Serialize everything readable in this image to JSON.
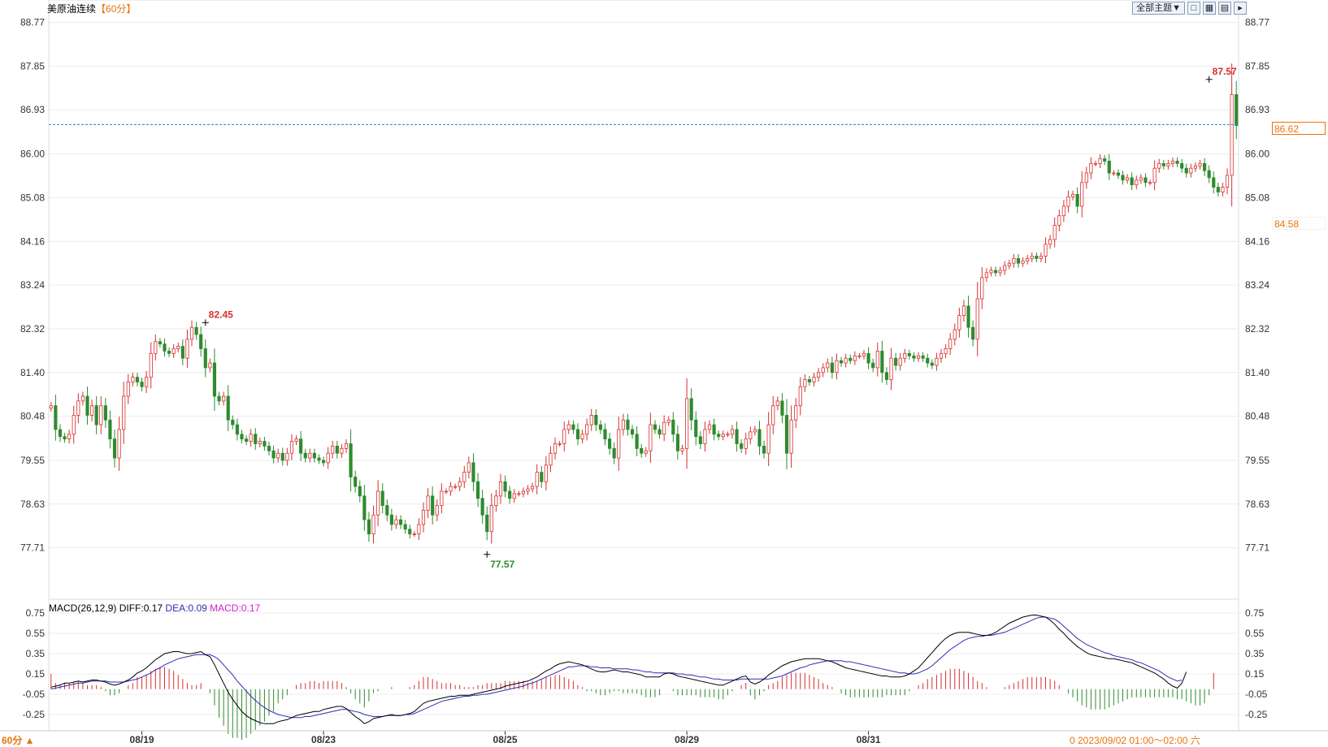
{
  "header": {
    "symbol": "美原油连续",
    "period": "【60分】"
  },
  "toolbar": {
    "theme_label": "全部主题▼",
    "icons": [
      "window-icon",
      "grid-icon",
      "grid-plus-icon",
      "panel-toggle-icon"
    ]
  },
  "price_tags": {
    "current": "86.62",
    "secondary": "84.58"
  },
  "macd_legend": {
    "name": "MACD(26,12,9)",
    "diff": "DIFF:0.17",
    "dea": "DEA:0.09",
    "macd": "MACD:0.17"
  },
  "footer": {
    "period_button": "60分 ▲",
    "status": "0 2023/09/02 01:00～02:00 六"
  },
  "colors": {
    "up": "#d63030",
    "down": "#2e8b2e",
    "diff_line": "#000000",
    "dea_line": "#2d2db5",
    "macd_label": "#d020d0",
    "current_price_line": "#2f7fc8",
    "accent": "#e8730c"
  },
  "chart_data": [
    {
      "type": "candlestick",
      "title": "美原油连续",
      "yticks": [
        "88.77",
        "87.85",
        "86.93",
        "86.00",
        "85.08",
        "84.16",
        "83.24",
        "82.32",
        "81.40",
        "80.48",
        "79.55",
        "78.63",
        "77.71"
      ],
      "ylim": [
        76.9,
        88.9
      ],
      "xticks": [
        {
          "index": 20,
          "label": "08/19"
        },
        {
          "index": 60,
          "label": "08/23"
        },
        {
          "index": 100,
          "label": "08/25"
        },
        {
          "index": 140,
          "label": "08/29"
        },
        {
          "index": 180,
          "label": "08/31"
        }
      ],
      "annotations": [
        {
          "index": 34,
          "value": 82.45,
          "label": "82.45",
          "kind": "high"
        },
        {
          "index": 96,
          "value": 77.57,
          "label": "77.57",
          "kind": "low"
        },
        {
          "index": 255,
          "value": 87.57,
          "label": "87.57",
          "kind": "high"
        }
      ],
      "reference_line": {
        "value": 86.62,
        "label": "86.62"
      },
      "close": [
        80.7,
        80.2,
        80.05,
        80.0,
        80.1,
        80.5,
        80.8,
        80.9,
        80.5,
        80.7,
        80.3,
        80.7,
        80.4,
        80.0,
        79.6,
        80.2,
        80.9,
        81.2,
        81.3,
        81.2,
        81.1,
        81.3,
        81.8,
        82.05,
        82.0,
        81.85,
        81.8,
        81.9,
        81.95,
        81.7,
        82.1,
        82.35,
        82.2,
        81.9,
        81.5,
        81.6,
        80.9,
        80.8,
        80.9,
        80.4,
        80.3,
        80.1,
        80.0,
        79.95,
        80.1,
        79.9,
        79.95,
        79.85,
        79.75,
        79.6,
        79.7,
        79.55,
        79.7,
        79.95,
        80.0,
        79.7,
        79.6,
        79.7,
        79.6,
        79.55,
        79.5,
        79.7,
        79.85,
        79.7,
        79.8,
        79.9,
        79.2,
        79.0,
        78.8,
        78.3,
        78.0,
        78.4,
        78.9,
        78.6,
        78.4,
        78.2,
        78.3,
        78.2,
        78.1,
        78.0,
        78.0,
        78.2,
        78.5,
        78.8,
        78.4,
        78.6,
        78.9,
        78.9,
        79.0,
        79.0,
        79.1,
        79.3,
        79.5,
        79.1,
        78.75,
        78.4,
        78.05,
        78.6,
        78.8,
        79.1,
        78.9,
        78.75,
        78.85,
        78.85,
        78.9,
        78.95,
        79.0,
        79.3,
        79.1,
        79.45,
        79.7,
        79.9,
        79.9,
        80.2,
        80.3,
        80.2,
        80.0,
        80.1,
        80.3,
        80.5,
        80.3,
        80.2,
        80.0,
        79.8,
        79.6,
        80.2,
        80.4,
        80.2,
        80.1,
        79.8,
        79.7,
        79.75,
        80.3,
        80.2,
        80.1,
        80.35,
        80.4,
        80.1,
        79.75,
        79.8,
        80.85,
        80.4,
        80.05,
        79.9,
        80.2,
        80.3,
        80.1,
        80.05,
        80.1,
        80.1,
        80.2,
        79.9,
        79.8,
        80.0,
        80.15,
        80.2,
        79.85,
        79.7,
        80.3,
        80.7,
        80.8,
        80.5,
        79.7,
        80.4,
        80.7,
        81.1,
        81.25,
        81.2,
        81.3,
        81.4,
        81.5,
        81.6,
        81.4,
        81.65,
        81.6,
        81.7,
        81.65,
        81.75,
        81.75,
        81.8,
        81.6,
        81.5,
        81.85,
        81.4,
        81.25,
        81.7,
        81.55,
        81.7,
        81.8,
        81.75,
        81.7,
        81.75,
        81.7,
        81.6,
        81.55,
        81.7,
        81.8,
        81.9,
        82.1,
        82.3,
        82.6,
        82.8,
        82.35,
        82.1,
        82.95,
        83.4,
        83.5,
        83.55,
        83.5,
        83.55,
        83.65,
        83.7,
        83.8,
        83.7,
        83.75,
        83.8,
        83.85,
        83.8,
        83.85,
        84.1,
        84.2,
        84.5,
        84.7,
        84.9,
        85.1,
        85.15,
        84.9,
        85.4,
        85.6,
        85.8,
        85.8,
        85.9,
        85.85,
        85.6,
        85.6,
        85.55,
        85.45,
        85.5,
        85.35,
        85.45,
        85.5,
        85.4,
        85.4,
        85.7,
        85.8,
        85.75,
        85.8,
        85.85,
        85.8,
        85.7,
        85.6,
        85.7,
        85.75,
        85.8,
        85.65,
        85.5,
        85.3,
        85.2,
        85.3,
        85.55,
        87.25,
        86.6
      ],
      "macd": {
        "yticks": [
          "0.75",
          "0.55",
          "0.35",
          "0.15",
          "-0.05",
          "-0.25"
        ],
        "ylim": [
          -0.41,
          0.83
        ],
        "diff": [
          0.02,
          0.03,
          0.04,
          0.06,
          0.06,
          0.07,
          0.08,
          0.07,
          0.08,
          0.09,
          0.09,
          0.08,
          0.07,
          0.05,
          0.04,
          0.05,
          0.07,
          0.09,
          0.12,
          0.16,
          0.18,
          0.21,
          0.25,
          0.29,
          0.32,
          0.35,
          0.36,
          0.37,
          0.37,
          0.36,
          0.35,
          0.35,
          0.36,
          0.37,
          0.34,
          0.32,
          0.24,
          0.15,
          0.06,
          -0.03,
          -0.1,
          -0.16,
          -0.22,
          -0.26,
          -0.29,
          -0.31,
          -0.33,
          -0.34,
          -0.34,
          -0.34,
          -0.32,
          -0.31,
          -0.3,
          -0.28,
          -0.26,
          -0.25,
          -0.24,
          -0.23,
          -0.22,
          -0.22,
          -0.2,
          -0.19,
          -0.18,
          -0.17,
          -0.17,
          -0.19,
          -0.23,
          -0.27,
          -0.3,
          -0.34,
          -0.32,
          -0.29,
          -0.28,
          -0.27,
          -0.26,
          -0.25,
          -0.26,
          -0.26,
          -0.25,
          -0.24,
          -0.22,
          -0.18,
          -0.14,
          -0.12,
          -0.11,
          -0.1,
          -0.09,
          -0.08,
          -0.07,
          -0.07,
          -0.06,
          -0.06,
          -0.06,
          -0.05,
          -0.04,
          -0.03,
          -0.02,
          -0.01,
          0.0,
          0.01,
          0.03,
          0.04,
          0.05,
          0.06,
          0.07,
          0.08,
          0.1,
          0.12,
          0.15,
          0.18,
          0.2,
          0.23,
          0.25,
          0.26,
          0.27,
          0.26,
          0.25,
          0.24,
          0.22,
          0.2,
          0.18,
          0.17,
          0.17,
          0.18,
          0.19,
          0.18,
          0.17,
          0.17,
          0.16,
          0.15,
          0.14,
          0.12,
          0.12,
          0.12,
          0.12,
          0.15,
          0.16,
          0.15,
          0.13,
          0.12,
          0.11,
          0.1,
          0.09,
          0.08,
          0.07,
          0.06,
          0.05,
          0.04,
          0.04,
          0.06,
          0.08,
          0.1,
          0.12,
          0.13,
          0.07,
          0.05,
          0.07,
          0.1,
          0.14,
          0.17,
          0.2,
          0.23,
          0.25,
          0.27,
          0.28,
          0.29,
          0.3,
          0.3,
          0.3,
          0.3,
          0.29,
          0.28,
          0.27,
          0.25,
          0.23,
          0.21,
          0.2,
          0.19,
          0.18,
          0.17,
          0.16,
          0.15,
          0.14,
          0.13,
          0.13,
          0.12,
          0.12,
          0.12,
          0.13,
          0.15,
          0.18,
          0.21,
          0.26,
          0.31,
          0.36,
          0.41,
          0.46,
          0.5,
          0.53,
          0.55,
          0.56,
          0.56,
          0.56,
          0.55,
          0.54,
          0.53,
          0.53,
          0.54,
          0.56,
          0.59,
          0.62,
          0.65,
          0.67,
          0.69,
          0.71,
          0.72,
          0.73,
          0.73,
          0.72,
          0.71,
          0.68,
          0.64,
          0.59,
          0.55,
          0.5,
          0.46,
          0.42,
          0.39,
          0.36,
          0.34,
          0.33,
          0.32,
          0.31,
          0.3,
          0.3,
          0.29,
          0.28,
          0.27,
          0.26,
          0.24,
          0.22,
          0.2,
          0.18,
          0.16,
          0.13,
          0.1,
          0.06,
          0.03,
          0.01,
          0.06,
          0.17
        ],
        "dea": [
          0.0,
          0.01,
          0.02,
          0.03,
          0.04,
          0.05,
          0.06,
          0.06,
          0.07,
          0.08,
          0.08,
          0.08,
          0.08,
          0.07,
          0.07,
          0.07,
          0.07,
          0.08,
          0.09,
          0.1,
          0.12,
          0.14,
          0.16,
          0.19,
          0.21,
          0.24,
          0.26,
          0.28,
          0.3,
          0.31,
          0.32,
          0.33,
          0.34,
          0.34,
          0.34,
          0.34,
          0.32,
          0.29,
          0.24,
          0.19,
          0.14,
          0.08,
          0.03,
          -0.02,
          -0.07,
          -0.11,
          -0.15,
          -0.18,
          -0.21,
          -0.23,
          -0.25,
          -0.26,
          -0.27,
          -0.28,
          -0.28,
          -0.28,
          -0.27,
          -0.27,
          -0.26,
          -0.25,
          -0.24,
          -0.23,
          -0.22,
          -0.21,
          -0.2,
          -0.2,
          -0.21,
          -0.22,
          -0.23,
          -0.25,
          -0.26,
          -0.27,
          -0.27,
          -0.27,
          -0.26,
          -0.26,
          -0.26,
          -0.26,
          -0.25,
          -0.25,
          -0.24,
          -0.22,
          -0.2,
          -0.18,
          -0.16,
          -0.14,
          -0.12,
          -0.11,
          -0.1,
          -0.09,
          -0.08,
          -0.07,
          -0.07,
          -0.06,
          -0.06,
          -0.05,
          -0.05,
          -0.04,
          -0.03,
          -0.02,
          -0.01,
          0.0,
          0.01,
          0.02,
          0.03,
          0.05,
          0.06,
          0.08,
          0.1,
          0.12,
          0.14,
          0.16,
          0.18,
          0.2,
          0.22,
          0.22,
          0.23,
          0.23,
          0.23,
          0.22,
          0.22,
          0.21,
          0.21,
          0.21,
          0.2,
          0.2,
          0.2,
          0.2,
          0.19,
          0.19,
          0.18,
          0.17,
          0.17,
          0.16,
          0.16,
          0.16,
          0.16,
          0.16,
          0.15,
          0.15,
          0.14,
          0.14,
          0.13,
          0.12,
          0.12,
          0.11,
          0.1,
          0.1,
          0.09,
          0.09,
          0.09,
          0.09,
          0.1,
          0.1,
          0.1,
          0.1,
          0.1,
          0.1,
          0.1,
          0.11,
          0.12,
          0.13,
          0.15,
          0.17,
          0.19,
          0.21,
          0.22,
          0.24,
          0.25,
          0.26,
          0.27,
          0.28,
          0.28,
          0.28,
          0.28,
          0.27,
          0.27,
          0.26,
          0.25,
          0.24,
          0.23,
          0.22,
          0.21,
          0.2,
          0.19,
          0.18,
          0.17,
          0.16,
          0.16,
          0.15,
          0.15,
          0.16,
          0.18,
          0.2,
          0.23,
          0.27,
          0.31,
          0.35,
          0.39,
          0.42,
          0.45,
          0.48,
          0.5,
          0.51,
          0.52,
          0.52,
          0.53,
          0.53,
          0.54,
          0.55,
          0.56,
          0.58,
          0.6,
          0.62,
          0.64,
          0.66,
          0.68,
          0.7,
          0.71,
          0.71,
          0.7,
          0.69,
          0.66,
          0.62,
          0.58,
          0.54,
          0.5,
          0.47,
          0.44,
          0.42,
          0.4,
          0.38,
          0.36,
          0.35,
          0.33,
          0.32,
          0.31,
          0.3,
          0.29,
          0.27,
          0.26,
          0.24,
          0.22,
          0.2,
          0.18,
          0.15,
          0.12,
          0.1,
          0.08,
          0.09
        ],
        "hist": [
          0.15,
          0.06,
          0.04,
          0.06,
          0.06,
          0.07,
          0.08,
          0.06,
          0.04,
          0.04,
          0.04,
          0.02,
          -0.02,
          -0.06,
          -0.06,
          -0.04,
          0.0,
          0.04,
          0.06,
          0.12,
          0.12,
          0.14,
          0.18,
          0.2,
          0.22,
          0.22,
          0.2,
          0.18,
          0.14,
          0.1,
          0.06,
          0.04,
          0.04,
          0.06,
          0.0,
          -0.04,
          -0.16,
          -0.28,
          -0.36,
          -0.44,
          -0.48,
          -0.48,
          -0.5,
          -0.48,
          -0.44,
          -0.4,
          -0.36,
          -0.32,
          -0.26,
          -0.22,
          -0.14,
          -0.1,
          -0.06,
          0.0,
          0.04,
          0.06,
          0.06,
          0.08,
          0.08,
          0.06,
          0.08,
          0.08,
          0.08,
          0.08,
          0.06,
          0.02,
          -0.04,
          -0.1,
          -0.14,
          -0.18,
          -0.12,
          -0.04,
          -0.02,
          0.0,
          0.0,
          0.02,
          0.0,
          0.0,
          0.0,
          0.02,
          0.04,
          0.08,
          0.12,
          0.12,
          0.1,
          0.08,
          0.06,
          0.06,
          0.06,
          0.04,
          0.04,
          0.02,
          0.02,
          0.02,
          0.04,
          0.04,
          0.06,
          0.06,
          0.06,
          0.06,
          0.08,
          0.08,
          0.08,
          0.08,
          0.08,
          0.06,
          0.08,
          0.08,
          0.1,
          0.12,
          0.12,
          0.14,
          0.14,
          0.12,
          0.1,
          0.08,
          0.04,
          0.02,
          -0.02,
          -0.02,
          -0.04,
          -0.06,
          -0.06,
          -0.04,
          -0.02,
          -0.02,
          -0.04,
          -0.04,
          -0.04,
          -0.04,
          -0.06,
          -0.08,
          -0.08,
          -0.08,
          -0.06,
          0.0,
          0.0,
          -0.02,
          -0.06,
          -0.06,
          -0.06,
          -0.06,
          -0.06,
          -0.08,
          -0.08,
          -0.08,
          -0.08,
          -0.1,
          -0.1,
          -0.06,
          -0.02,
          0.0,
          0.04,
          0.06,
          -0.06,
          -0.1,
          -0.06,
          -0.02,
          0.04,
          0.06,
          0.08,
          0.12,
          0.14,
          0.16,
          0.16,
          0.16,
          0.16,
          0.14,
          0.12,
          0.1,
          0.06,
          0.04,
          0.02,
          0.0,
          -0.04,
          -0.06,
          -0.08,
          -0.08,
          -0.08,
          -0.08,
          -0.08,
          -0.08,
          -0.08,
          -0.08,
          -0.06,
          -0.06,
          -0.06,
          -0.06,
          -0.06,
          -0.02,
          0.0,
          0.04,
          0.06,
          0.1,
          0.12,
          0.14,
          0.16,
          0.18,
          0.2,
          0.2,
          0.2,
          0.18,
          0.16,
          0.12,
          0.08,
          0.06,
          0.02,
          0.0,
          0.0,
          0.0,
          0.02,
          0.04,
          0.06,
          0.08,
          0.1,
          0.12,
          0.12,
          0.12,
          0.12,
          0.12,
          0.1,
          0.08,
          0.04,
          0.0,
          -0.04,
          -0.08,
          -0.12,
          -0.16,
          -0.18,
          -0.2,
          -0.2,
          -0.2,
          -0.2,
          -0.18,
          -0.16,
          -0.14,
          -0.12,
          -0.1,
          -0.08,
          -0.08,
          -0.08,
          -0.08,
          -0.08,
          -0.08,
          -0.08,
          -0.08,
          -0.08,
          -0.08,
          -0.1,
          -0.1,
          -0.12,
          -0.14,
          -0.16,
          -0.16,
          -0.14,
          -0.06,
          0.16
        ]
      }
    }
  ]
}
